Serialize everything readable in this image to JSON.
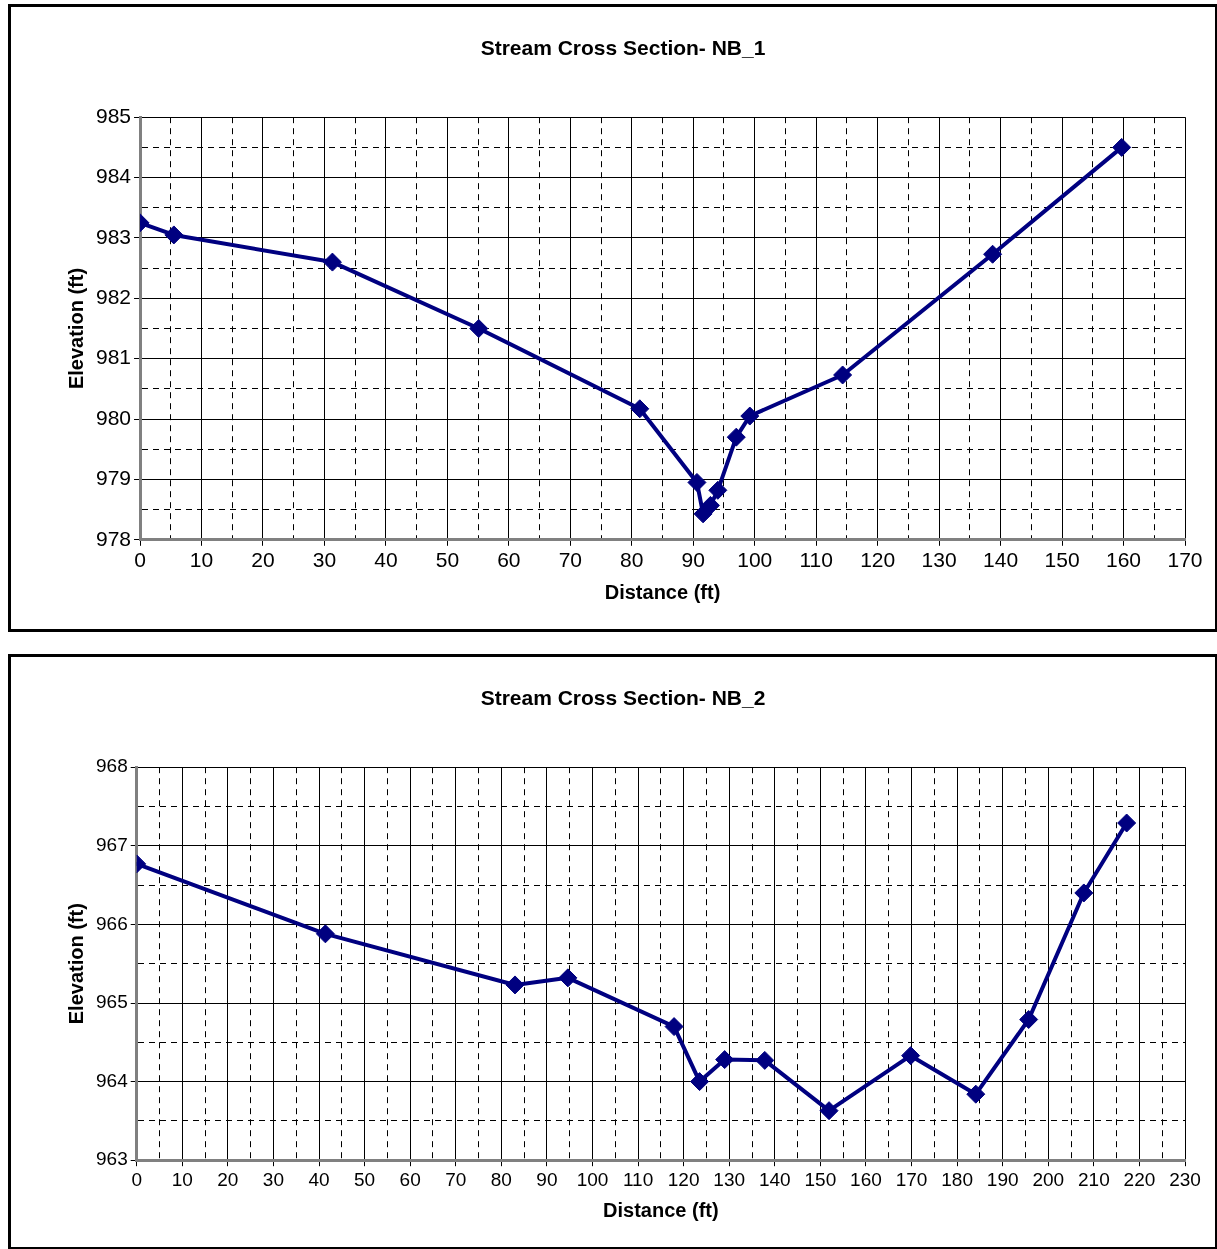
{
  "chart_data": [
    {
      "type": "line",
      "title": "Stream Cross Section- NB_1",
      "xlabel": "Distance (ft)",
      "ylabel": "Elevation (ft)",
      "marker": "diamond",
      "line_style": "solid",
      "grid": true,
      "legend": false,
      "xlim": [
        0,
        170
      ],
      "xticks": [
        0,
        {
          "value": 5,
          "label": null
        },
        10,
        {
          "value": 15,
          "label": null
        },
        20,
        {
          "value": 25,
          "label": null
        },
        30,
        {
          "value": 35,
          "label": null
        },
        40,
        {
          "value": 45,
          "label": null
        },
        50,
        {
          "value": 55,
          "label": null
        },
        60,
        {
          "value": 65,
          "label": null
        },
        70,
        {
          "value": 75,
          "label": null
        },
        80,
        {
          "value": 85,
          "label": null
        },
        90,
        {
          "value": 95,
          "label": null
        },
        100,
        {
          "value": 105,
          "label": null
        },
        110,
        {
          "value": 115,
          "label": null
        },
        120,
        {
          "value": 125,
          "label": null
        },
        130,
        {
          "value": 135,
          "label": null
        },
        140,
        {
          "value": 145,
          "label": null
        },
        150,
        {
          "value": 155,
          "label": null
        },
        160,
        {
          "value": 165,
          "label": null
        },
        170
      ],
      "ylim": [
        978,
        985
      ],
      "yticks": [
        978,
        {
          "value": 978.5,
          "label": null
        },
        979,
        {
          "value": 979.5,
          "label": null
        },
        980,
        {
          "value": 980.5,
          "label": null
        },
        981,
        {
          "value": 981.5,
          "label": null
        },
        982,
        {
          "value": 982.5,
          "label": null
        },
        983,
        {
          "value": 983.5,
          "label": null
        },
        984,
        {
          "value": 984.5,
          "label": null
        },
        985
      ],
      "series": [
        {
          "color": "#000080",
          "x": [
            0,
            5.5,
            31.3,
            55.1,
            81.3,
            90.6,
            91.6,
            92.8,
            94,
            97,
            99.2,
            114.3,
            138.7,
            159.7
          ],
          "values": [
            983.25,
            983.05,
            982.6,
            981.5,
            980.17,
            978.95,
            978.43,
            978.57,
            978.82,
            979.7,
            980.05,
            980.73,
            982.73,
            984.5
          ]
        }
      ]
    },
    {
      "type": "line",
      "title": "Stream Cross Section- NB_2",
      "xlabel": "Distance (ft)",
      "ylabel": "Elevation (ft)",
      "marker": "diamond",
      "line_style": "solid",
      "grid": true,
      "legend": false,
      "xlim": [
        0,
        230
      ],
      "xticks": [
        0,
        {
          "value": 5,
          "label": null
        },
        10,
        {
          "value": 15,
          "label": null
        },
        20,
        {
          "value": 25,
          "label": null
        },
        30,
        {
          "value": 35,
          "label": null
        },
        40,
        {
          "value": 45,
          "label": null
        },
        50,
        {
          "value": 55,
          "label": null
        },
        60,
        {
          "value": 65,
          "label": null
        },
        70,
        {
          "value": 75,
          "label": null
        },
        80,
        {
          "value": 85,
          "label": null
        },
        90,
        {
          "value": 95,
          "label": null
        },
        100,
        {
          "value": 105,
          "label": null
        },
        110,
        {
          "value": 115,
          "label": null
        },
        120,
        {
          "value": 125,
          "label": null
        },
        130,
        {
          "value": 135,
          "label": null
        },
        140,
        {
          "value": 145,
          "label": null
        },
        150,
        {
          "value": 155,
          "label": null
        },
        160,
        {
          "value": 165,
          "label": null
        },
        170,
        {
          "value": 175,
          "label": null
        },
        180,
        {
          "value": 185,
          "label": null
        },
        190,
        {
          "value": 195,
          "label": null
        },
        200,
        {
          "value": 205,
          "label": null
        },
        210,
        {
          "value": 215,
          "label": null
        },
        220,
        {
          "value": 225,
          "label": null
        },
        230
      ],
      "ylim": [
        963,
        968
      ],
      "yticks": [
        963,
        {
          "value": 963.5,
          "label": null
        },
        964,
        {
          "value": 964.5,
          "label": null
        },
        965,
        {
          "value": 965.5,
          "label": null
        },
        966,
        {
          "value": 966.5,
          "label": null
        },
        967,
        {
          "value": 967.5,
          "label": null
        },
        968
      ],
      "series": [
        {
          "color": "#000080",
          "x": [
            0,
            41.4,
            83,
            94.6,
            117.9,
            123.5,
            129,
            137.8,
            151.9,
            169.8,
            184.1,
            195.7,
            207.8,
            217.2
          ],
          "values": [
            966.77,
            965.88,
            965.23,
            965.32,
            964.7,
            964.0,
            964.28,
            964.27,
            963.63,
            964.33,
            963.84,
            964.79,
            966.4,
            967.29
          ]
        }
      ]
    }
  ]
}
